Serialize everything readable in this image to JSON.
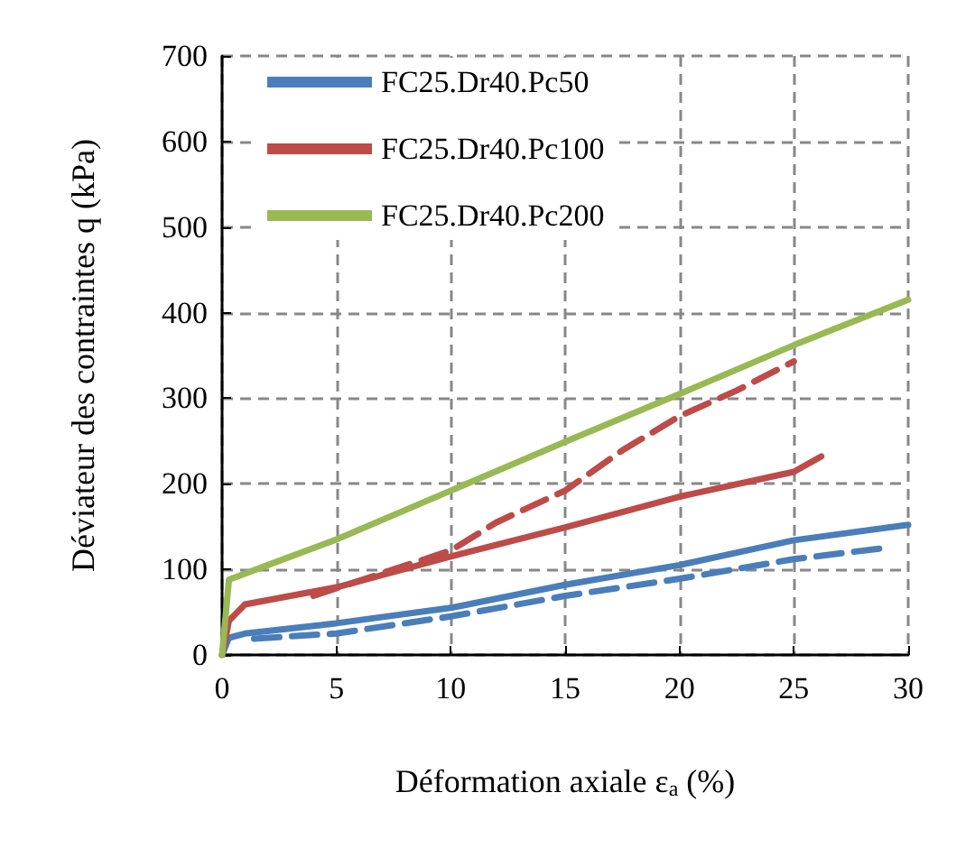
{
  "chart_data": {
    "type": "line",
    "xlabel": "Déformation axiale ε$_{a}$ (%)",
    "ylabel": "Déviateur des contraintes q (kPa)",
    "xlim": [
      0,
      30
    ],
    "xticks": [
      0,
      5,
      10,
      15,
      20,
      25,
      30
    ],
    "ylim": [
      0,
      700
    ],
    "yticks": [
      0,
      100,
      200,
      300,
      400,
      500,
      600,
      700
    ],
    "grid": true,
    "legend": "top left",
    "marker": "none",
    "series": [
      {
        "name": "FC25.Dr40.Pc50",
        "color": "#4a7ebb",
        "x": [
          0,
          0.3,
          1,
          5,
          10,
          15,
          20,
          25,
          30
        ],
        "values": [
          0,
          20,
          25,
          37,
          55,
          82,
          105,
          134,
          152
        ]
      },
      {
        "name": "FC25.Dr40.Pc100",
        "color": "#be4b48",
        "x": [
          0,
          0.3,
          1,
          5,
          10,
          15,
          20,
          25,
          26.2
        ],
        "values": [
          0,
          40,
          59,
          79,
          115,
          149,
          185,
          214,
          232
        ]
      },
      {
        "name": "FC25.Dr40.Pc200",
        "color": "#98b954",
        "x": [
          0,
          0.3,
          2,
          5,
          10,
          15,
          20,
          25,
          30
        ],
        "values": [
          0,
          88,
          105,
          135,
          192,
          249,
          305,
          362,
          415
        ]
      },
      {
        "color": "#4a7ebb",
        "line_style": "dashed",
        "x": [
          1.4,
          5,
          10,
          15,
          20,
          25,
          29
        ],
        "values": [
          19,
          25,
          45,
          69,
          89,
          112,
          125
        ]
      },
      {
        "color": "#be4b48",
        "line_style": "dashed",
        "x": [
          4,
          10,
          12,
          15,
          17.5,
          20,
          22.5,
          25
        ],
        "values": [
          69,
          122,
          155,
          192,
          239,
          279,
          309,
          343
        ]
      }
    ]
  }
}
